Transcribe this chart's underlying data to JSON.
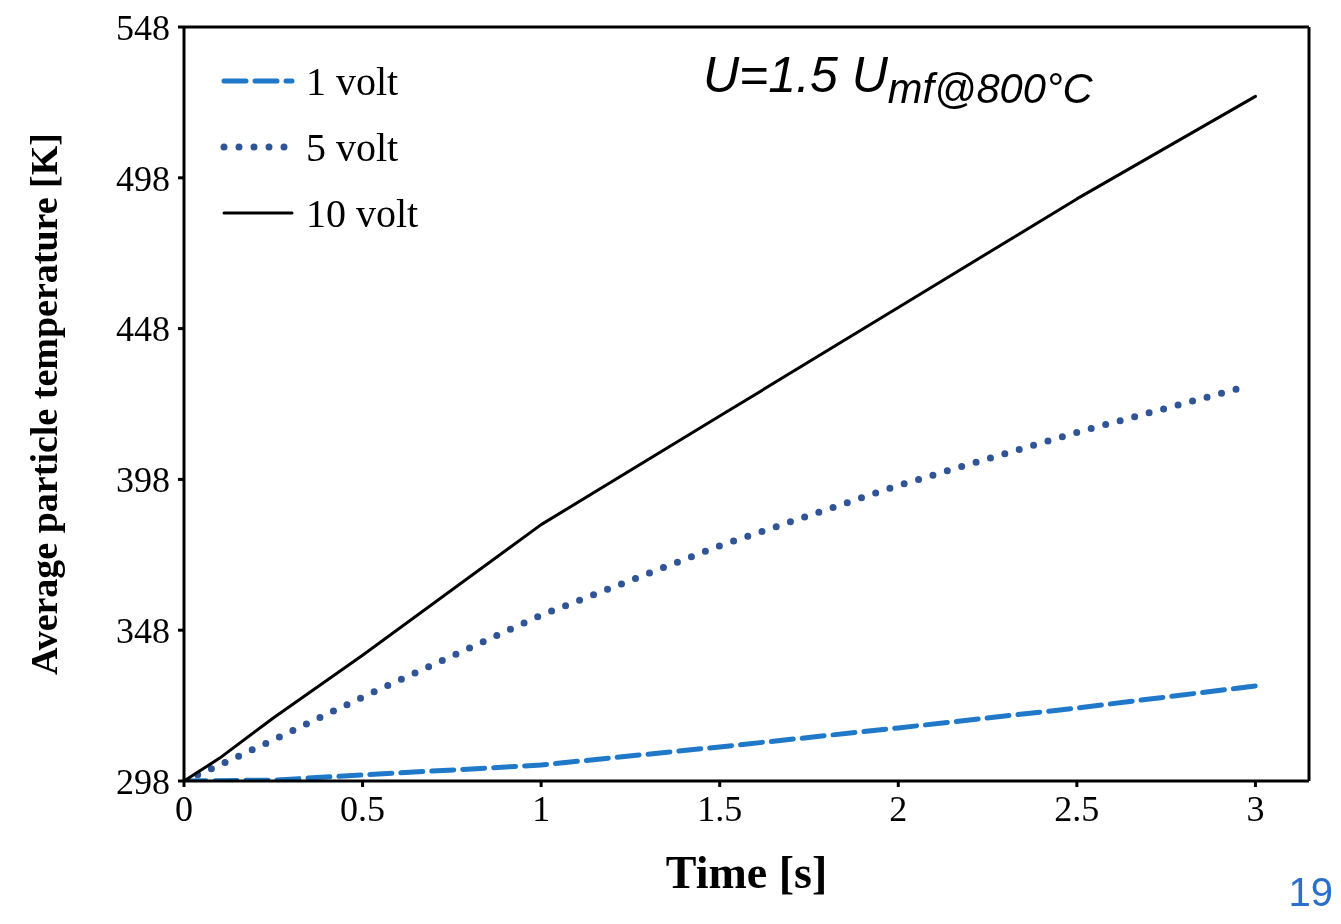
{
  "chart_data": {
    "type": "line",
    "xlabel": "Time [s]",
    "ylabel": "Average particle temperature [K]",
    "annotations": [
      "U=1.5 U$_{mf@800°C}$",
      "19"
    ],
    "xlim": [
      0,
      3.15
    ],
    "xticks": [
      0,
      0.5,
      1,
      1.5,
      2,
      2.5,
      3
    ],
    "ylim": [
      298,
      548
    ],
    "yticks": [
      298,
      348,
      398,
      448,
      498,
      548
    ],
    "grid": false,
    "legend": "top left",
    "marker": "none",
    "series": [
      {
        "name": "1 volt",
        "color": "#1f78c8",
        "line_style": "dashed",
        "x": [
          0,
          0.25,
          0.5,
          1,
          1.5,
          2,
          2.5,
          3
        ],
        "values": [
          298,
          298.3,
          300,
          303.3,
          309.3,
          315.6,
          322.2,
          329.5
        ]
      },
      {
        "name": "5 volt",
        "color": "#2f5597",
        "line_style": "dotted",
        "x": [
          0,
          0.1,
          0.25,
          0.5,
          1,
          1.5,
          2,
          2.5,
          2.95
        ],
        "values": [
          298,
          303.3,
          311.6,
          325.8,
          353,
          376,
          396,
          413.6,
          428
        ]
      },
      {
        "name": "10 volt",
        "color": "#000000",
        "line_style": "solid",
        "x": [
          0,
          0.1,
          0.25,
          0.5,
          1,
          1.5,
          2,
          2.5,
          3
        ],
        "values": [
          298,
          305.6,
          318.9,
          339.7,
          383,
          419,
          455,
          491,
          525
        ]
      }
    ]
  }
}
